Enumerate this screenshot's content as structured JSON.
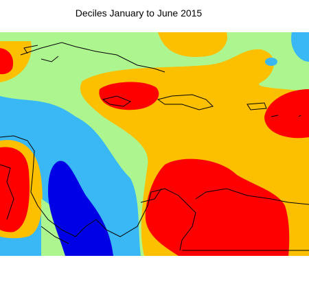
{
  "title": "Deciles January to June 2015"
}
